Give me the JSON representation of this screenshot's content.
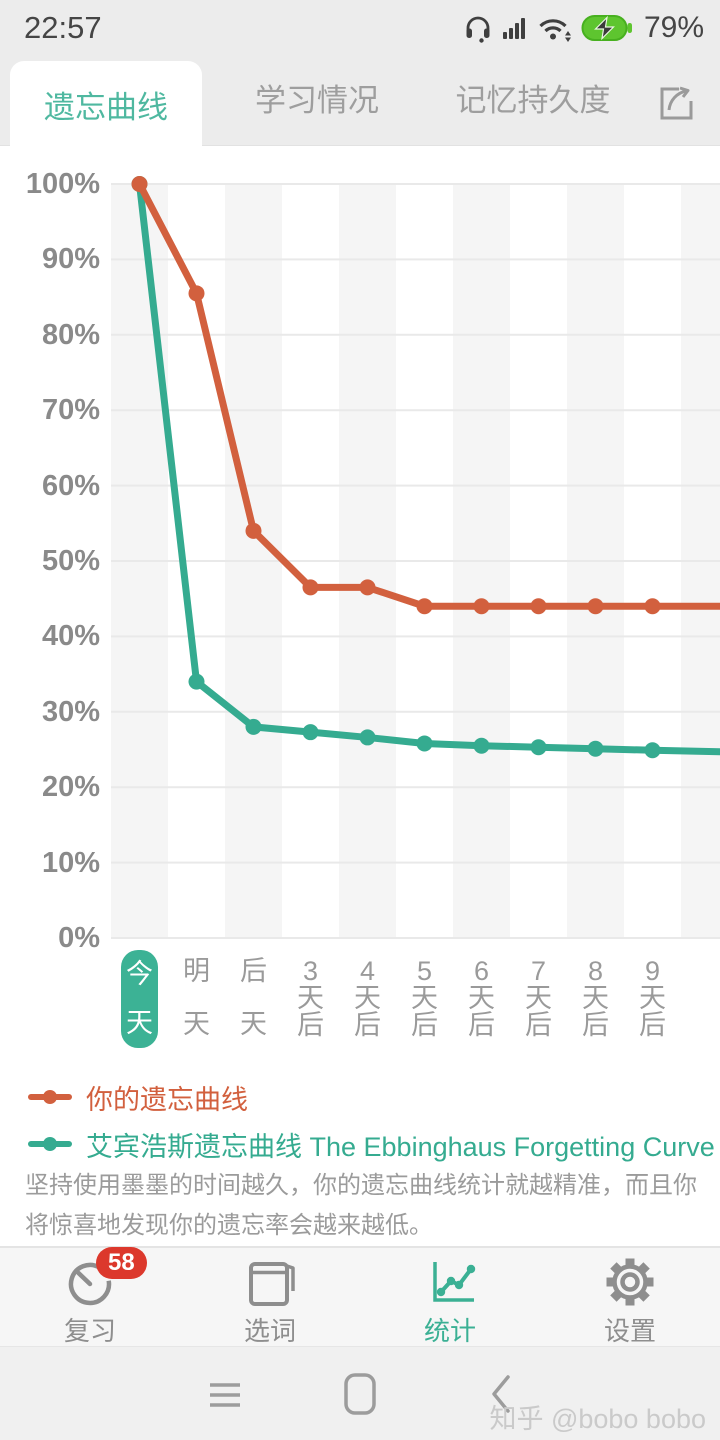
{
  "status_bar": {
    "time": "22:57",
    "battery_percent": "79%",
    "icons": [
      "headset-icon",
      "signal-icon",
      "wifi-icon",
      "battery-charging-icon"
    ]
  },
  "tab_bar": {
    "tabs": [
      {
        "label": "遗忘曲线",
        "active": true
      },
      {
        "label": "学习情况",
        "active": false
      },
      {
        "label": "记忆持久度",
        "active": false
      }
    ],
    "share_icon": "share-icon"
  },
  "chart_data": {
    "type": "line",
    "title": "遗忘曲线",
    "categories": [
      "今天",
      "明天",
      "后天",
      "3天后",
      "4天后",
      "5天后",
      "6天后",
      "7天后",
      "8天后",
      "9天后"
    ],
    "selected_category": "今天",
    "y_ticks": [
      "100%",
      "90%",
      "80%",
      "70%",
      "60%",
      "50%",
      "40%",
      "30%",
      "20%",
      "10%",
      "0%"
    ],
    "ylim": [
      0,
      100
    ],
    "grid": true,
    "legend_position": "bottom-left",
    "series": [
      {
        "name": "你的遗忘曲线",
        "color": "#d2603e",
        "values": [
          100,
          85.5,
          54,
          46.5,
          46.5,
          44,
          44,
          44,
          44,
          44
        ],
        "edge_value": 44
      },
      {
        "name": "艾宾浩斯遗忘曲线 The Ebbinghaus Forgetting Curve",
        "color": "#35ab90",
        "values": [
          100,
          34,
          28,
          27.3,
          26.6,
          25.8,
          25.5,
          25.3,
          25.1,
          24.9
        ],
        "edge_value": 24.7
      }
    ]
  },
  "legend": [
    {
      "label": "你的遗忘曲线",
      "color": "#d2603e"
    },
    {
      "label": "艾宾浩斯遗忘曲线 The Ebbinghaus Forgetting Curve",
      "color": "#35ab90"
    }
  ],
  "description": "坚持使用墨墨的时间越久，你的遗忘曲线统计就越精准，而且你将惊喜地发现你的遗忘率会越来越低。",
  "bottom_nav": {
    "items": [
      {
        "label": "复习",
        "icon": "stopwatch-icon",
        "badge": "58",
        "active": false
      },
      {
        "label": "选词",
        "icon": "book-icon",
        "active": false
      },
      {
        "label": "统计",
        "icon": "line-chart-icon",
        "active": true
      },
      {
        "label": "设置",
        "icon": "gear-icon",
        "active": false
      }
    ]
  },
  "android_nav": {
    "buttons": [
      "menu",
      "home",
      "back"
    ]
  },
  "watermark": "知乎 @bobo bobo",
  "colors": {
    "teal": "#3bb094",
    "teal_tab": "#4fb8a0",
    "orange": "#d2603e",
    "badge_red": "#dc382c",
    "stripe_gray": "#f5f5f5",
    "gridline": "#e9e9e9"
  }
}
